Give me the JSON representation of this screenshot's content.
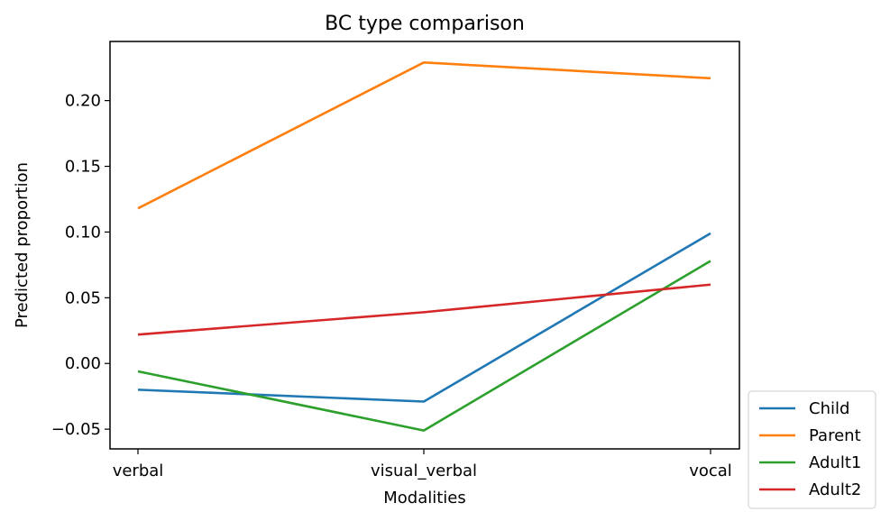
{
  "chart_data": {
    "type": "line",
    "title": "BC type comparison",
    "xlabel": "Modalities",
    "ylabel": "Predicted proportion",
    "categories": [
      "verbal",
      "visual_verbal",
      "vocal"
    ],
    "ylim": [
      -0.065,
      0.245
    ],
    "yticks": [
      -0.05,
      0.0,
      0.05,
      0.1,
      0.15,
      0.2
    ],
    "ytick_labels": [
      "−0.05",
      "0.00",
      "0.05",
      "0.10",
      "0.15",
      "0.20"
    ],
    "grid": false,
    "legend_position": "outside-lower-right",
    "series": [
      {
        "name": "Child",
        "color": "#1f77b4",
        "values": [
          -0.02,
          -0.029,
          0.099
        ]
      },
      {
        "name": "Parent",
        "color": "#ff7f0e",
        "values": [
          0.118,
          0.229,
          0.217
        ]
      },
      {
        "name": "Adult1",
        "color": "#2ca02c",
        "values": [
          -0.006,
          -0.051,
          0.078
        ]
      },
      {
        "name": "Adult2",
        "color": "#d62728",
        "values": [
          0.022,
          0.039,
          0.06
        ]
      }
    ]
  }
}
